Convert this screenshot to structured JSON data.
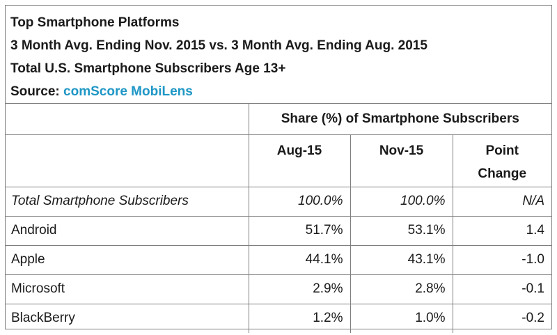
{
  "header": {
    "title": "Top Smartphone Platforms",
    "line2": "3 Month Avg. Ending Nov. 2015 vs. 3 Month Avg. Ending Aug. 2015",
    "line3": "Total U.S. Smartphone Subscribers Age 13+",
    "source_prefix": "Source: ",
    "source_name": "comScore MobiLens"
  },
  "table": {
    "group_header": "Share (%) of Smartphone Subscribers",
    "columns": [
      "Aug-15",
      "Nov-15",
      "Point",
      "Change"
    ],
    "rows": [
      {
        "label": "Total Smartphone Subscribers",
        "aug": "100.0%",
        "nov": "100.0%",
        "change": "N/A"
      },
      {
        "label": "Android",
        "aug": "51.7%",
        "nov": "53.1%",
        "change": "1.4"
      },
      {
        "label": "Apple",
        "aug": "44.1%",
        "nov": "43.1%",
        "change": "-1.0"
      },
      {
        "label": "Microsoft",
        "aug": "2.9%",
        "nov": "2.8%",
        "change": "-0.1"
      },
      {
        "label": "BlackBerry",
        "aug": "1.2%",
        "nov": "1.0%",
        "change": "-0.2"
      }
    ]
  },
  "colors": {
    "source_link": "#1f97c6",
    "border": "#7f7f7f"
  }
}
